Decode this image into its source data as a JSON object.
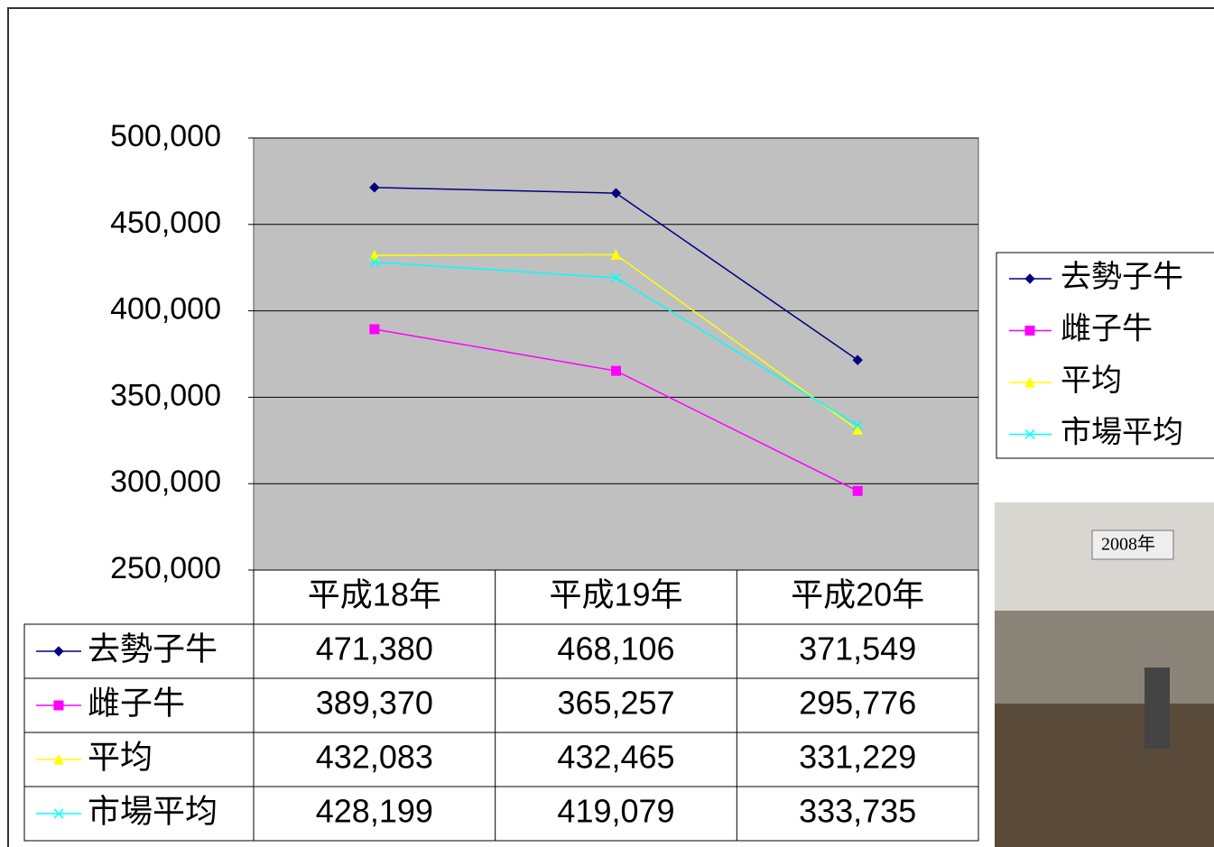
{
  "chart_data": {
    "type": "line",
    "categories": [
      "平成18年",
      "平成19年",
      "平成20年"
    ],
    "series": [
      {
        "name": "去勢子牛",
        "color": "#000080",
        "marker": "diamond",
        "values": [
          471380,
          468106,
          371549
        ],
        "value_labels": [
          "471,380",
          "468,106",
          "371,549"
        ]
      },
      {
        "name": "雌子牛",
        "color": "#ff00ff",
        "marker": "square",
        "values": [
          389370,
          365257,
          295776
        ],
        "value_labels": [
          "389,370",
          "365,257",
          "295,776"
        ]
      },
      {
        "name": "平均",
        "color": "#ffff00",
        "marker": "triangle",
        "values": [
          432083,
          432465,
          331229
        ],
        "value_labels": [
          "432,083",
          "432,465",
          "331,229"
        ]
      },
      {
        "name": "市場平均",
        "color": "#00ffff",
        "marker": "x",
        "values": [
          428199,
          419079,
          333735
        ],
        "value_labels": [
          "428,199",
          "419,079",
          "333,735"
        ]
      }
    ],
    "ylim": [
      250000,
      500000
    ],
    "yticks": [
      {
        "value": 250000,
        "label": "250,000"
      },
      {
        "value": 300000,
        "label": "300,000"
      },
      {
        "value": 350000,
        "label": "350,000"
      },
      {
        "value": 400000,
        "label": "400,000"
      },
      {
        "value": 450000,
        "label": "450,000"
      },
      {
        "value": 500000,
        "label": "500,000"
      }
    ],
    "grid": true,
    "legend": "right",
    "data_table": true
  },
  "photo": {
    "caption": "2008年"
  }
}
